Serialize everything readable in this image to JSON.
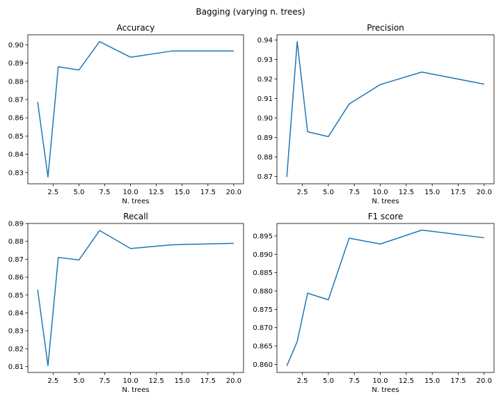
{
  "suptitle": "Bagging (varying n. trees)",
  "chart_data": [
    {
      "type": "line",
      "title": "Accuracy",
      "xlabel": "N. trees",
      "ylabel": "",
      "x": [
        1,
        2,
        3,
        5,
        7,
        10,
        14,
        20
      ],
      "series": [
        {
          "values": [
            0.8687,
            0.8275,
            0.888,
            0.8862,
            0.9018,
            0.8932,
            0.8966,
            0.8966
          ]
        }
      ],
      "xlim": [
        0.05,
        20.95
      ],
      "ylim": [
        0.8238,
        0.9055
      ],
      "xticks": [
        2.5,
        5.0,
        7.5,
        10.0,
        12.5,
        15.0,
        17.5,
        20.0
      ],
      "xtick_labels": [
        "2.5",
        "5.0",
        "7.5",
        "10.0",
        "12.5",
        "15.0",
        "17.5",
        "20.0"
      ],
      "yticks": [
        0.83,
        0.84,
        0.85,
        0.86,
        0.87,
        0.88,
        0.89,
        0.9
      ],
      "ytick_labels": [
        "0.83",
        "0.84",
        "0.85",
        "0.86",
        "0.87",
        "0.88",
        "0.89",
        "0.90"
      ],
      "color": "#1f77b4",
      "grid": false
    },
    {
      "type": "line",
      "title": "Precision",
      "xlabel": "N. trees",
      "ylabel": "",
      "x": [
        1,
        2,
        3,
        5,
        7,
        10,
        14,
        20
      ],
      "series": [
        {
          "values": [
            0.8698,
            0.9392,
            0.893,
            0.8905,
            0.9072,
            0.9172,
            0.9236,
            0.9174
          ]
        }
      ],
      "xlim": [
        0.05,
        20.95
      ],
      "ylim": [
        0.8663,
        0.9427
      ],
      "xticks": [
        2.5,
        5.0,
        7.5,
        10.0,
        12.5,
        15.0,
        17.5,
        20.0
      ],
      "xtick_labels": [
        "2.5",
        "5.0",
        "7.5",
        "10.0",
        "12.5",
        "15.0",
        "17.5",
        "20.0"
      ],
      "yticks": [
        0.87,
        0.88,
        0.89,
        0.9,
        0.91,
        0.92,
        0.93,
        0.94
      ],
      "ytick_labels": [
        "0.87",
        "0.88",
        "0.89",
        "0.90",
        "0.91",
        "0.92",
        "0.93",
        "0.94"
      ],
      "color": "#1f77b4",
      "grid": false
    },
    {
      "type": "line",
      "title": "Recall",
      "xlabel": "N. trees",
      "ylabel": "",
      "x": [
        1,
        2,
        3,
        5,
        7,
        10,
        14,
        20
      ],
      "series": [
        {
          "values": [
            0.853,
            0.8105,
            0.871,
            0.8696,
            0.8861,
            0.876,
            0.8781,
            0.8789
          ]
        }
      ],
      "xlim": [
        0.05,
        20.95
      ],
      "ylim": [
        0.8067,
        0.89
      ],
      "xticks": [
        2.5,
        5.0,
        7.5,
        10.0,
        12.5,
        15.0,
        17.5,
        20.0
      ],
      "xtick_labels": [
        "2.5",
        "5.0",
        "7.5",
        "10.0",
        "12.5",
        "15.0",
        "17.5",
        "20.0"
      ],
      "yticks": [
        0.81,
        0.82,
        0.83,
        0.84,
        0.85,
        0.86,
        0.87,
        0.88,
        0.89
      ],
      "ytick_labels": [
        "0.81",
        "0.82",
        "0.83",
        "0.84",
        "0.85",
        "0.86",
        "0.87",
        "0.88",
        "0.89"
      ],
      "color": "#1f77b4",
      "grid": false
    },
    {
      "type": "line",
      "title": "F1 score",
      "xlabel": "N. trees",
      "ylabel": "",
      "x": [
        1,
        2,
        3,
        5,
        7,
        10,
        14,
        20
      ],
      "series": [
        {
          "values": [
            0.8596,
            0.8662,
            0.8794,
            0.8776,
            0.8944,
            0.8928,
            0.8966,
            0.8945
          ]
        }
      ],
      "xlim": [
        0.05,
        20.95
      ],
      "ylim": [
        0.8578,
        0.8984
      ],
      "xticks": [
        2.5,
        5.0,
        7.5,
        10.0,
        12.5,
        15.0,
        17.5,
        20.0
      ],
      "xtick_labels": [
        "2.5",
        "5.0",
        "7.5",
        "10.0",
        "12.5",
        "15.0",
        "17.5",
        "20.0"
      ],
      "yticks": [
        0.86,
        0.865,
        0.87,
        0.875,
        0.88,
        0.885,
        0.89,
        0.895
      ],
      "ytick_labels": [
        "0.860",
        "0.865",
        "0.870",
        "0.875",
        "0.880",
        "0.885",
        "0.890",
        "0.895"
      ],
      "color": "#1f77b4",
      "grid": false
    }
  ]
}
